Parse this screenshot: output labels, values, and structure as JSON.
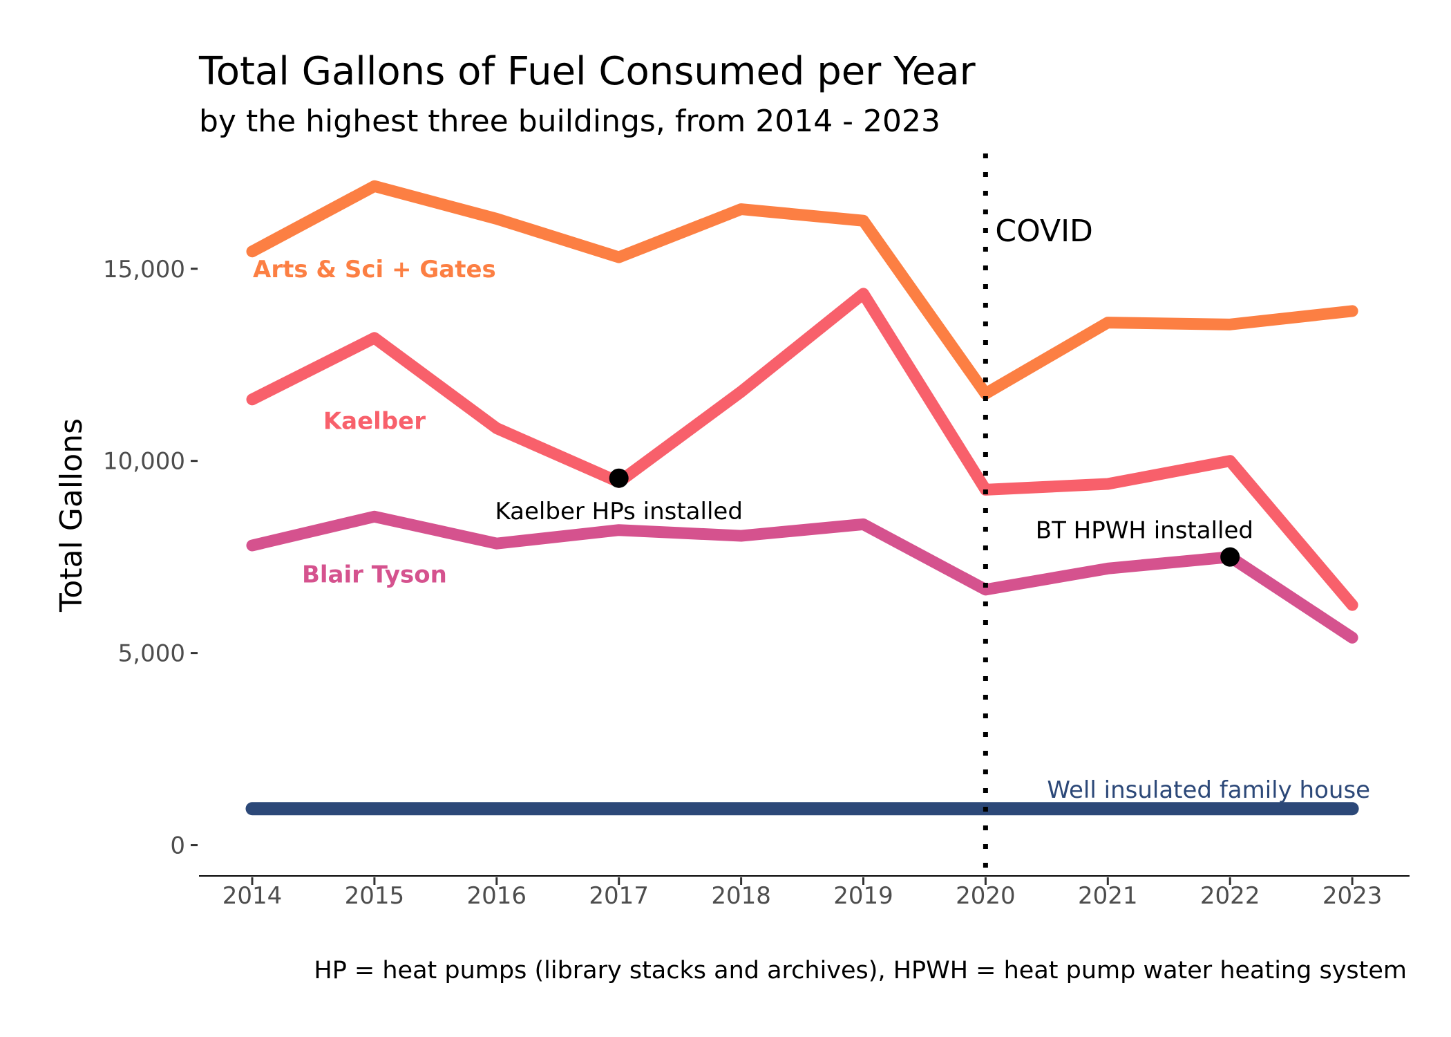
{
  "chart_data": {
    "type": "line",
    "title": "Total Gallons of Fuel Consumed per Year",
    "subtitle": "by the highest three buildings, from 2014 - 2023",
    "xlabel": "",
    "ylabel": "Total Gallons",
    "caption": "HP = heat pumps (library stacks and archives), HPWH = heat pump water heating system",
    "x": [
      2014,
      2015,
      2016,
      2017,
      2018,
      2019,
      2020,
      2021,
      2022,
      2023
    ],
    "x_ticks": [
      "2014",
      "2015",
      "2016",
      "2017",
      "2018",
      "2019",
      "2020",
      "2021",
      "2022",
      "2023"
    ],
    "ylim": [
      -800,
      18000
    ],
    "y_ticks": [
      {
        "value": 0,
        "label": "0"
      },
      {
        "value": 5000,
        "label": "5,000"
      },
      {
        "value": 10000,
        "label": "10,000"
      },
      {
        "value": 15000,
        "label": "15,000"
      }
    ],
    "grid": false,
    "series": [
      {
        "name": "Arts & Sci + Gates",
        "color": "#fc7f43",
        "values": [
          15450,
          17150,
          16300,
          15300,
          16550,
          16250,
          11750,
          13600,
          13550,
          13900
        ]
      },
      {
        "name": "Kaelber",
        "color": "#f8606b",
        "values": [
          11600,
          13200,
          10850,
          9450,
          11800,
          14350,
          9250,
          9400,
          10000,
          6250
        ]
      },
      {
        "name": "Blair Tyson",
        "color": "#d5528e",
        "values": [
          7800,
          8550,
          7850,
          8200,
          8050,
          8350,
          6650,
          7200,
          7500,
          5400
        ]
      },
      {
        "name": "Well insulated family house",
        "color": "#2c4878",
        "values": [
          950,
          950,
          950,
          950,
          950,
          950,
          950,
          950,
          950,
          950
        ]
      }
    ],
    "reference_line": {
      "x": 2020,
      "label": "COVID",
      "style": "dotted"
    },
    "annotations": [
      {
        "text": "Kaelber HPs installed",
        "x": 2017,
        "y": 9550
      },
      {
        "text": "BT HPWH installed",
        "x": 2022,
        "y": 7500
      }
    ]
  }
}
